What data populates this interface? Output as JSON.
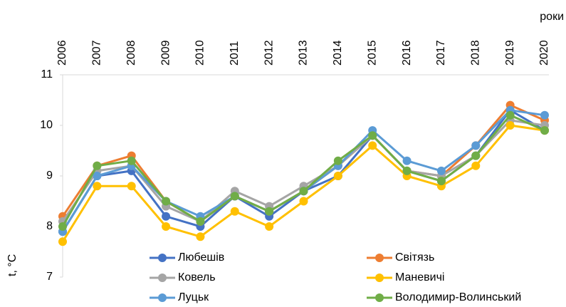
{
  "chart_data": {
    "type": "line",
    "x_label": "роки",
    "y_label": "t, °C",
    "categories": [
      "2006",
      "2007",
      "2008",
      "2009",
      "2010",
      "2011",
      "2012",
      "2013",
      "2014",
      "2015",
      "2016",
      "2017",
      "2018",
      "2019",
      "2020"
    ],
    "series": [
      {
        "name": "Любешів",
        "color": "#4472c4",
        "values": [
          7.9,
          9.0,
          9.1,
          8.2,
          8.0,
          8.6,
          8.2,
          8.7,
          9.0,
          9.8,
          9.1,
          8.9,
          9.4,
          10.3,
          9.9
        ]
      },
      {
        "name": "Світязь",
        "color": "#ed7d31",
        "values": [
          8.2,
          9.2,
          9.4,
          8.5,
          8.1,
          8.6,
          8.3,
          8.7,
          9.2,
          9.8,
          9.1,
          9.0,
          9.6,
          10.4,
          10.1
        ]
      },
      {
        "name": "Ковель",
        "color": "#a5a5a5",
        "values": [
          8.1,
          9.1,
          9.2,
          8.4,
          8.1,
          8.7,
          8.4,
          8.8,
          9.2,
          9.8,
          9.1,
          9.0,
          9.4,
          10.1,
          10.0
        ]
      },
      {
        "name": "Маневичі",
        "color": "#ffc000",
        "values": [
          7.7,
          8.8,
          8.8,
          8.0,
          7.8,
          8.3,
          8.0,
          8.5,
          9.0,
          9.6,
          9.0,
          8.8,
          9.2,
          10.0,
          9.9
        ]
      },
      {
        "name": "Луцьк",
        "color": "#5b9bd5",
        "values": [
          7.9,
          9.0,
          9.2,
          8.5,
          8.2,
          8.6,
          8.3,
          8.7,
          9.2,
          9.9,
          9.3,
          9.1,
          9.6,
          10.3,
          10.2
        ]
      },
      {
        "name": "Володимир-Волинський",
        "color": "#70ad47",
        "values": [
          8.0,
          9.2,
          9.3,
          8.5,
          8.1,
          8.6,
          8.3,
          8.7,
          9.3,
          9.8,
          9.1,
          8.9,
          9.4,
          10.2,
          9.9
        ]
      }
    ],
    "ylim": [
      7,
      11
    ],
    "yticks": [
      7,
      8,
      9,
      10,
      11
    ],
    "grid": false
  }
}
